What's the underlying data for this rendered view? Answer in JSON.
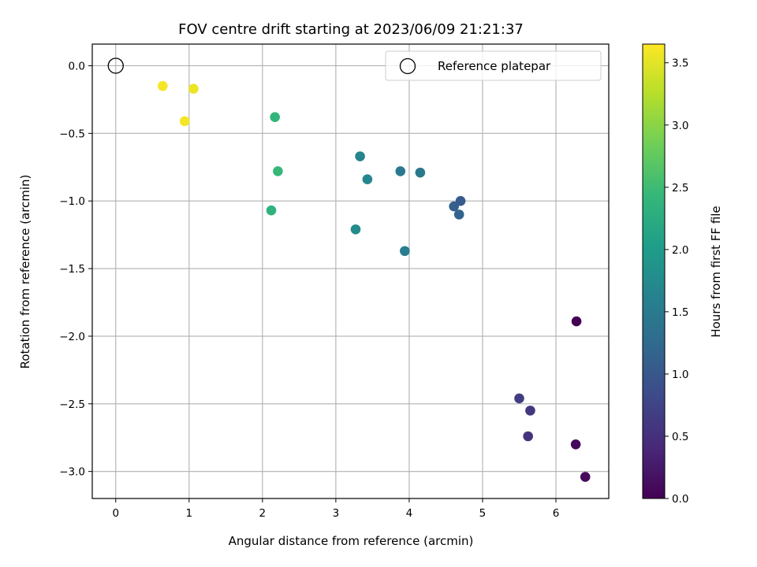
{
  "chart_data": {
    "type": "scatter",
    "title": "FOV centre drift starting at 2023/06/09 21:21:37",
    "xlabel": "Angular distance from reference (arcmin)",
    "ylabel": "Rotation from reference (arcmin)",
    "xlim": [
      -0.32,
      6.72
    ],
    "ylim": [
      -3.2,
      0.16
    ],
    "xticks": [
      0,
      1,
      2,
      3,
      4,
      5,
      6
    ],
    "xtick_labels": [
      "0",
      "1",
      "2",
      "3",
      "4",
      "5",
      "6"
    ],
    "yticks": [
      0.0,
      -0.5,
      -1.0,
      -1.5,
      -2.0,
      -2.5,
      -3.0
    ],
    "ytick_labels": [
      "0.0",
      "−0.5",
      "−1.0",
      "−1.5",
      "−2.0",
      "−2.5",
      "−3.0"
    ],
    "grid": true,
    "legend": {
      "placement": "top-right",
      "entries": [
        "Reference platepar"
      ]
    },
    "reference": {
      "name": "Reference platepar",
      "x": 0.0,
      "y": 0.0,
      "marker": "open-circle"
    },
    "colorbar": {
      "label": "Hours from first FF file",
      "range": [
        0.0,
        3.65
      ],
      "ticks": [
        0.0,
        0.5,
        1.0,
        1.5,
        2.0,
        2.5,
        3.0,
        3.5
      ],
      "tick_labels": [
        "0.0",
        "0.5",
        "1.0",
        "1.5",
        "2.0",
        "2.5",
        "3.0",
        "3.5"
      ],
      "colormap": "viridis"
    },
    "points": [
      {
        "x": 6.28,
        "y": -1.89,
        "c": 0.0
      },
      {
        "x": 6.27,
        "y": -2.8,
        "c": 0.05
      },
      {
        "x": 6.4,
        "y": -3.04,
        "c": 0.1
      },
      {
        "x": 5.62,
        "y": -2.74,
        "c": 0.55
      },
      {
        "x": 5.65,
        "y": -2.55,
        "c": 0.6
      },
      {
        "x": 5.5,
        "y": -2.46,
        "c": 0.65
      },
      {
        "x": 4.7,
        "y": -1.0,
        "c": 1.05
      },
      {
        "x": 4.61,
        "y": -1.04,
        "c": 1.1
      },
      {
        "x": 4.68,
        "y": -1.1,
        "c": 1.15
      },
      {
        "x": 3.88,
        "y": -0.78,
        "c": 1.5
      },
      {
        "x": 4.15,
        "y": -0.79,
        "c": 1.45
      },
      {
        "x": 3.94,
        "y": -1.37,
        "c": 1.55
      },
      {
        "x": 3.33,
        "y": -0.67,
        "c": 1.65
      },
      {
        "x": 3.43,
        "y": -0.84,
        "c": 1.7
      },
      {
        "x": 3.27,
        "y": -1.21,
        "c": 1.75
      },
      {
        "x": 2.17,
        "y": -0.38,
        "c": 2.4
      },
      {
        "x": 2.21,
        "y": -0.78,
        "c": 2.45
      },
      {
        "x": 2.12,
        "y": -1.07,
        "c": 2.35
      },
      {
        "x": 0.64,
        "y": -0.15,
        "c": 3.6
      },
      {
        "x": 1.06,
        "y": -0.17,
        "c": 3.55
      },
      {
        "x": 0.94,
        "y": -0.41,
        "c": 3.6
      }
    ]
  },
  "colors": {
    "grid": "#b0b0b0",
    "axis": "#000000",
    "viridis": [
      "#440154",
      "#482878",
      "#3e4989",
      "#31688e",
      "#26828e",
      "#1f9e89",
      "#35b779",
      "#6ece58",
      "#b5de2b",
      "#fde725"
    ]
  }
}
